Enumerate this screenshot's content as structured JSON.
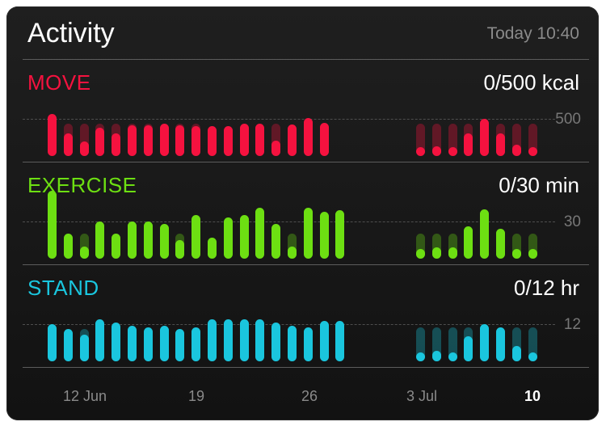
{
  "header": {
    "title": "Activity",
    "timestamp": "Today 10:40"
  },
  "sections": [
    {
      "id": "move",
      "label": "MOVE",
      "goal": "0/500 kcal",
      "goal_tick": "500",
      "color": "#f5123f",
      "bars": [
        {
          "v": 570,
          "ghost": null
        },
        {
          "v": 300,
          "ghost": 430
        },
        {
          "v": 200,
          "ghost": 430
        },
        {
          "v": 380,
          "ghost": 430
        },
        {
          "v": 300,
          "ghost": 430
        },
        {
          "v": 410,
          "ghost": 430
        },
        {
          "v": 410,
          "ghost": 430
        },
        {
          "v": 430,
          "ghost": null
        },
        {
          "v": 410,
          "ghost": 430
        },
        {
          "v": 400,
          "ghost": 430
        },
        {
          "v": 400,
          "ghost": null
        },
        {
          "v": 400,
          "ghost": null
        },
        {
          "v": 430,
          "ghost": null
        },
        {
          "v": 430,
          "ghost": null
        },
        {
          "v": 210,
          "ghost": 430
        },
        {
          "v": 420,
          "ghost": null
        },
        {
          "v": 510,
          "ghost": null
        },
        {
          "v": 450,
          "ghost": null
        }
      ],
      "recent": [
        {
          "v": 80,
          "ghost": 430
        },
        {
          "v": 130,
          "ghost": 430
        },
        {
          "v": 80,
          "ghost": 430
        },
        {
          "v": 300,
          "ghost": 430
        },
        {
          "v": 500,
          "ghost": null
        },
        {
          "v": 300,
          "ghost": 430
        },
        {
          "v": 150,
          "ghost": 430
        },
        {
          "v": 80,
          "ghost": 430
        }
      ]
    },
    {
      "id": "exercise",
      "label": "EXERCISE",
      "goal": "0/30 min",
      "goal_tick": "30",
      "color": "#6ddf12",
      "bars": [
        {
          "v": 55,
          "ghost": null
        },
        {
          "v": 20,
          "ghost": null
        },
        {
          "v": 10,
          "ghost": 20
        },
        {
          "v": 30,
          "ghost": null
        },
        {
          "v": 20,
          "ghost": null
        },
        {
          "v": 30,
          "ghost": null
        },
        {
          "v": 30,
          "ghost": null
        },
        {
          "v": 28,
          "ghost": null
        },
        {
          "v": 15,
          "ghost": 20
        },
        {
          "v": 35,
          "ghost": null
        },
        {
          "v": 17,
          "ghost": null
        },
        {
          "v": 33,
          "ghost": null
        },
        {
          "v": 35,
          "ghost": null
        },
        {
          "v": 41,
          "ghost": null
        },
        {
          "v": 28,
          "ghost": null
        },
        {
          "v": 10,
          "ghost": 20
        },
        {
          "v": 41,
          "ghost": null
        },
        {
          "v": 38,
          "ghost": null
        },
        {
          "v": 39,
          "ghost": null
        }
      ],
      "recent": [
        {
          "v": 8,
          "ghost": 20
        },
        {
          "v": 9,
          "ghost": 20
        },
        {
          "v": 9,
          "ghost": 20
        },
        {
          "v": 26,
          "ghost": null
        },
        {
          "v": 40,
          "ghost": null
        },
        {
          "v": 24,
          "ghost": null
        },
        {
          "v": 8,
          "ghost": 20
        },
        {
          "v": 8,
          "ghost": 20
        }
      ]
    },
    {
      "id": "stand",
      "label": "STAND",
      "goal": "0/12 hr",
      "goal_tick": "12",
      "color": "#1ac6de",
      "bars": [
        {
          "v": 12,
          "ghost": null
        },
        {
          "v": 10.5,
          "ghost": null
        },
        {
          "v": 8.5,
          "ghost": 10.5
        },
        {
          "v": 13.5,
          "ghost": null
        },
        {
          "v": 12.5,
          "ghost": null
        },
        {
          "v": 11.5,
          "ghost": null
        },
        {
          "v": 11,
          "ghost": null
        },
        {
          "v": 11.5,
          "ghost": null
        },
        {
          "v": 10.5,
          "ghost": null
        },
        {
          "v": 11,
          "ghost": null
        },
        {
          "v": 13.5,
          "ghost": null
        },
        {
          "v": 13.5,
          "ghost": null
        },
        {
          "v": 13.5,
          "ghost": null
        },
        {
          "v": 13.5,
          "ghost": null
        },
        {
          "v": 12.5,
          "ghost": null
        },
        {
          "v": 11.5,
          "ghost": null
        },
        {
          "v": 11,
          "ghost": null
        },
        {
          "v": 13,
          "ghost": null
        },
        {
          "v": 13,
          "ghost": null
        }
      ],
      "recent": [
        {
          "v": 1.5,
          "ghost": 11
        },
        {
          "v": 3.5,
          "ghost": 11
        },
        {
          "v": 1.5,
          "ghost": 11
        },
        {
          "v": 8,
          "ghost": 11
        },
        {
          "v": 12,
          "ghost": null
        },
        {
          "v": 11,
          "ghost": null
        },
        {
          "v": 5,
          "ghost": 11
        },
        {
          "v": 1.5,
          "ghost": 11
        }
      ]
    }
  ],
  "x_axis": {
    "labels": [
      "12 Jun",
      "19",
      "26",
      "3 Jul",
      "10"
    ],
    "today_label": "10"
  }
}
